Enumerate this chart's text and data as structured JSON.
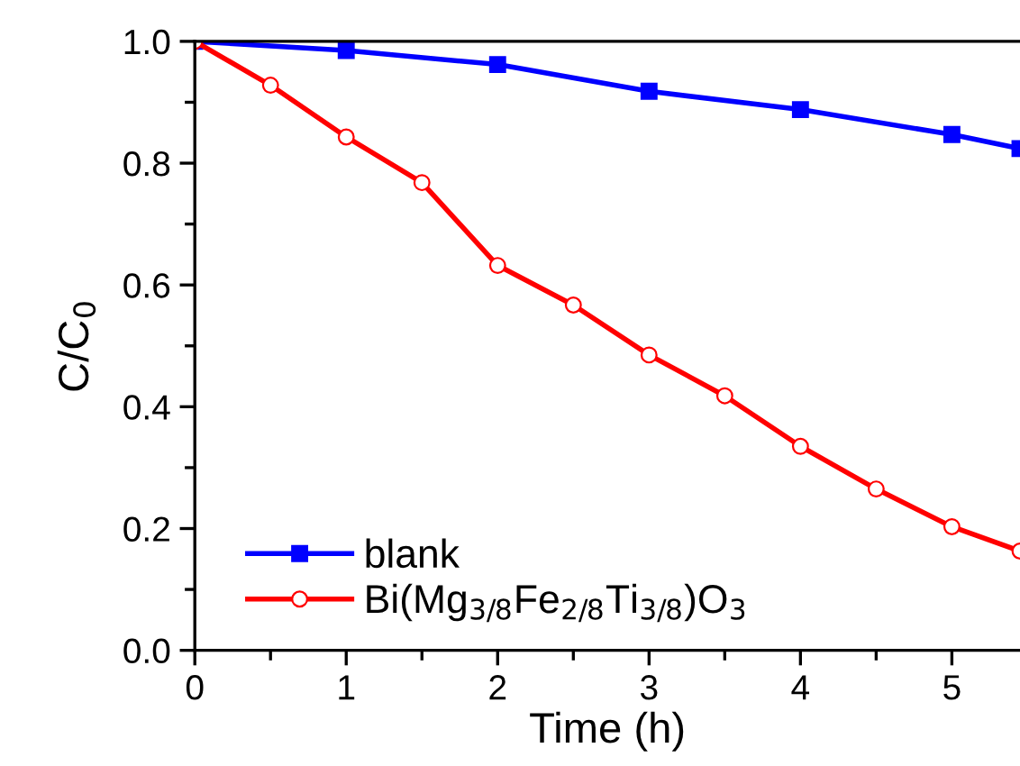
{
  "chart_data": {
    "type": "line",
    "xlabel": "Time (h)",
    "ylabel": "C/C$_{0}$",
    "xlim": [
      0,
      5.45
    ],
    "xticks": [
      0,
      1,
      2,
      3,
      4,
      5
    ],
    "ylim": [
      0,
      1.0
    ],
    "yticks": [
      {
        "value": 0,
        "label": "0.0"
      },
      0.2,
      0.4,
      0.6,
      0.8,
      {
        "value": 1,
        "label": "1.0"
      }
    ],
    "legend": "bottom left",
    "grid": false,
    "line_style": "solid",
    "series": [
      {
        "name": "blank",
        "color": "#0000ff",
        "marker": "square",
        "x": [
          0,
          1,
          2,
          3,
          4,
          5,
          5.45
        ],
        "values": [
          1.0,
          0.985,
          0.962,
          0.918,
          0.888,
          0.847,
          0.824
        ]
      },
      {
        "name": "Bi(Mg$_{3/8}$Fe$_{2/8}$Ti$_{3/8}$)O$_{3}$",
        "color": "#ff0000",
        "marker": "circle",
        "x": [
          0,
          0.5,
          1,
          1.5,
          2,
          2.5,
          3,
          3.5,
          4,
          4.5,
          5,
          5.45
        ],
        "values": [
          1.0,
          0.928,
          0.843,
          0.768,
          0.632,
          0.567,
          0.485,
          0.418,
          0.335,
          0.265,
          0.203,
          0.163
        ]
      }
    ]
  }
}
